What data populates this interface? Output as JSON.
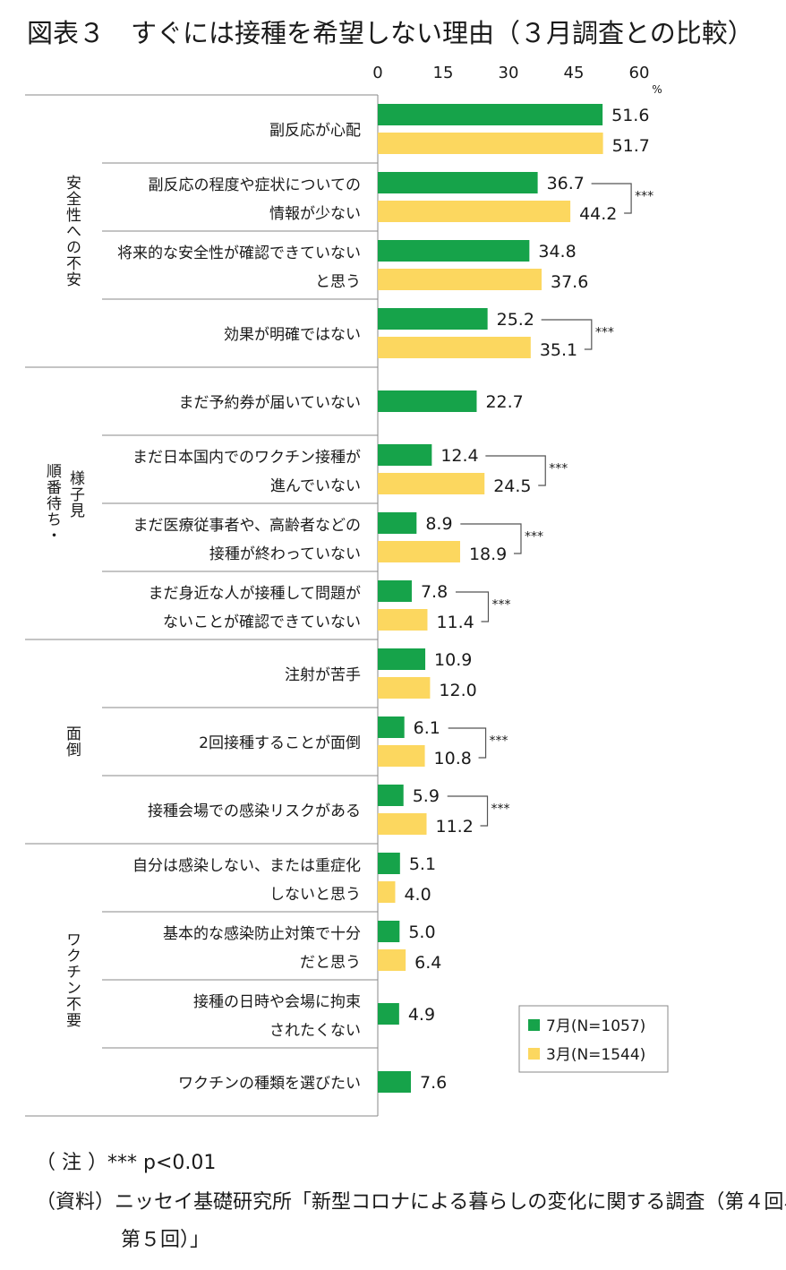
{
  "title": "図表３　すぐには接種を希望しない理由（３月調査との比較）",
  "notes": {
    "note": "（ 注 ）*** p<0.01",
    "source_line1": "（資料）ニッセイ基礎研究所「新型コロナによる暮らしの変化に関する調査（第４回、",
    "source_line2": "第５回）」"
  },
  "colors": {
    "july": "#16a34a",
    "march": "#fcd75f",
    "axis": "#888888"
  },
  "chart_data": {
    "type": "bar",
    "orientation": "horizontal",
    "xlim": [
      0,
      60
    ],
    "xticks": [
      0,
      15,
      30,
      45,
      60
    ],
    "unit": "%",
    "legend_position": "bottom-right",
    "series": [
      {
        "name": "7月(N=1057)",
        "color": "#16a34a",
        "values": [
          51.6,
          36.7,
          34.8,
          25.2,
          22.7,
          12.4,
          8.9,
          7.8,
          10.9,
          6.1,
          5.9,
          5.1,
          5.0,
          4.9,
          7.6
        ]
      },
      {
        "name": "3月(N=1544)",
        "color": "#fcd75f",
        "values": [
          51.7,
          44.2,
          37.6,
          35.1,
          null,
          24.5,
          18.9,
          11.4,
          12.0,
          10.8,
          11.2,
          4.0,
          6.4,
          null,
          null
        ]
      }
    ],
    "value_labels": {
      "july": [
        "51.6",
        "36.7",
        "34.8",
        "25.2",
        "22.7",
        "12.4",
        "8.9",
        "7.8",
        "10.9",
        "6.1",
        "5.9",
        "5.1",
        "5.0",
        "4.9",
        "7.6"
      ],
      "march": [
        "51.7",
        "44.2",
        "37.6",
        "35.1",
        null,
        "24.5",
        "18.9",
        "11.4",
        "12.0",
        "10.8",
        "11.2",
        "4.0",
        "6.4",
        null,
        null
      ]
    },
    "categories": [
      [
        "副反応が心配"
      ],
      [
        "副反応の程度や症状についての",
        "情報が少ない"
      ],
      [
        "将来的な安全性が確認できていない",
        "と思う"
      ],
      [
        "効果が明確ではない"
      ],
      [
        "まだ予約券が届いていない"
      ],
      [
        "まだ日本国内でのワクチン接種が",
        "進んでいない"
      ],
      [
        "まだ医療従事者や、高齢者などの",
        "接種が終わっていない"
      ],
      [
        "まだ身近な人が接種して問題が",
        "ないことが確認できていない"
      ],
      [
        "注射が苦手"
      ],
      [
        "2回接種することが面倒"
      ],
      [
        "接種会場での感染リスクがある"
      ],
      [
        "自分は感染しない、または重症化",
        "しないと思う"
      ],
      [
        "基本的な感染防止対策で十分",
        "だと思う"
      ],
      [
        "接種の日時や会場に拘束",
        "されたくない"
      ],
      [
        "ワクチンの種類を選びたい"
      ]
    ],
    "groups": [
      {
        "label": "安全性への不安",
        "start": 0,
        "end": 3
      },
      {
        "label": "順番待ち・様子見",
        "start": 4,
        "end": 7
      },
      {
        "label": "面倒",
        "start": 8,
        "end": 10
      },
      {
        "label": "ワクチン不要",
        "start": 11,
        "end": 14
      }
    ],
    "significance": {
      "marker": "***",
      "rows": [
        1,
        3,
        5,
        6,
        7,
        9,
        10
      ]
    }
  }
}
